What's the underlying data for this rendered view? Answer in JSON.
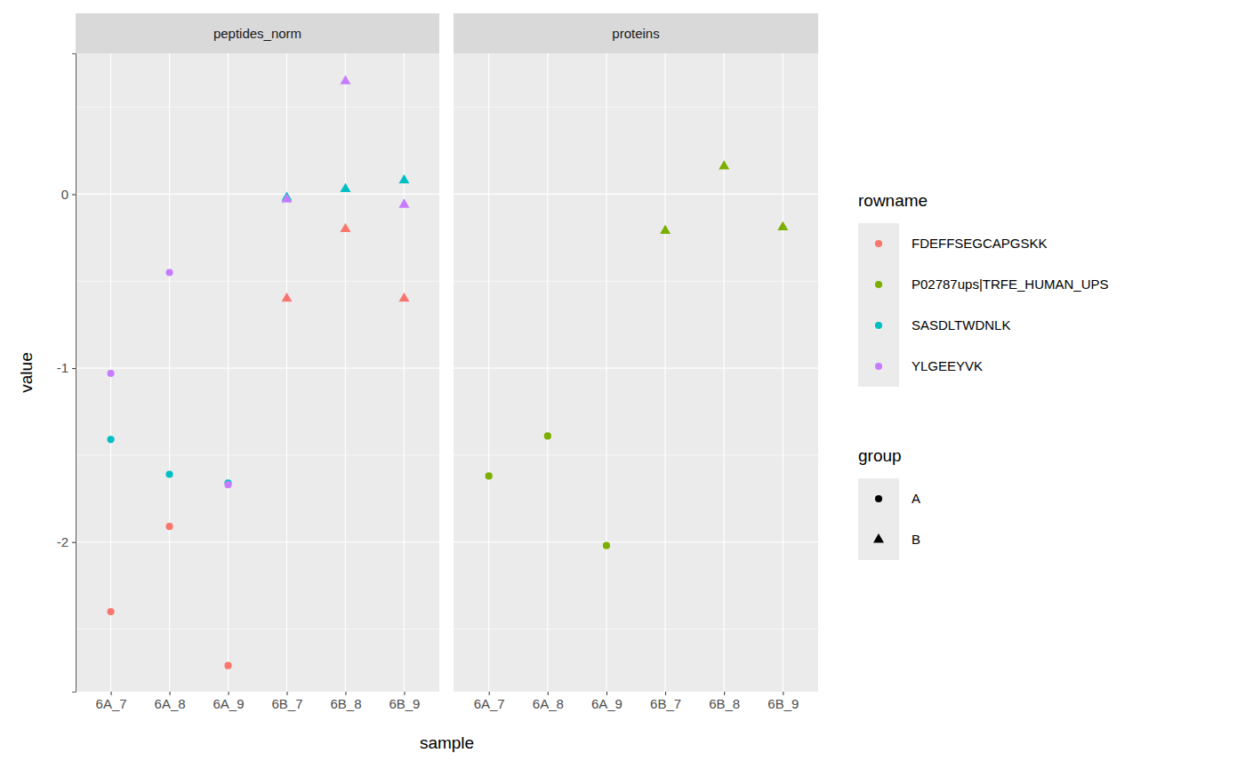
{
  "chart_data": {
    "type": "scatter",
    "x_label": "sample",
    "y_label": "value",
    "categories": [
      "6A_7",
      "6A_8",
      "6A_9",
      "6B_7",
      "6B_8",
      "6B_9"
    ],
    "ylim": [
      -2.86,
      0.81
    ],
    "yticks": [
      -2,
      -1,
      0
    ],
    "y_minor_gridlines": [
      -2.5,
      -1.5,
      -0.5,
      0.5
    ],
    "grid": true,
    "legend": "right",
    "color_title": "rowname",
    "groups": {
      "title": "group",
      "values": [
        "A",
        "A",
        "A",
        "B",
        "B",
        "B"
      ],
      "levels": [
        {
          "name": "A",
          "marker": "circle"
        },
        {
          "name": "B",
          "marker": "triangle"
        }
      ]
    },
    "facets": [
      {
        "title": "peptides_norm",
        "series": [
          {
            "name": "FDEFFSEGCAPGSKK",
            "color": "#F8766D",
            "values": [
              -2.4,
              -1.91,
              -2.71,
              -0.6,
              -0.2,
              -0.6
            ]
          },
          {
            "name": "SASDLTWDNLK",
            "color": "#00BFC4",
            "values": [
              -1.41,
              -1.61,
              -1.66,
              -0.02,
              0.03,
              0.08
            ]
          },
          {
            "name": "YLGEEYVK",
            "color": "#C77CFF",
            "values": [
              -1.03,
              -0.45,
              -1.67,
              -0.03,
              0.65,
              -0.06
            ]
          }
        ]
      },
      {
        "title": "proteins",
        "series": [
          {
            "name": "P02787ups|TRFE_HUMAN_UPS",
            "color": "#7CAE00",
            "values": [
              -1.62,
              -1.39,
              -2.02,
              -0.21,
              0.16,
              -0.19
            ]
          }
        ]
      }
    ]
  }
}
